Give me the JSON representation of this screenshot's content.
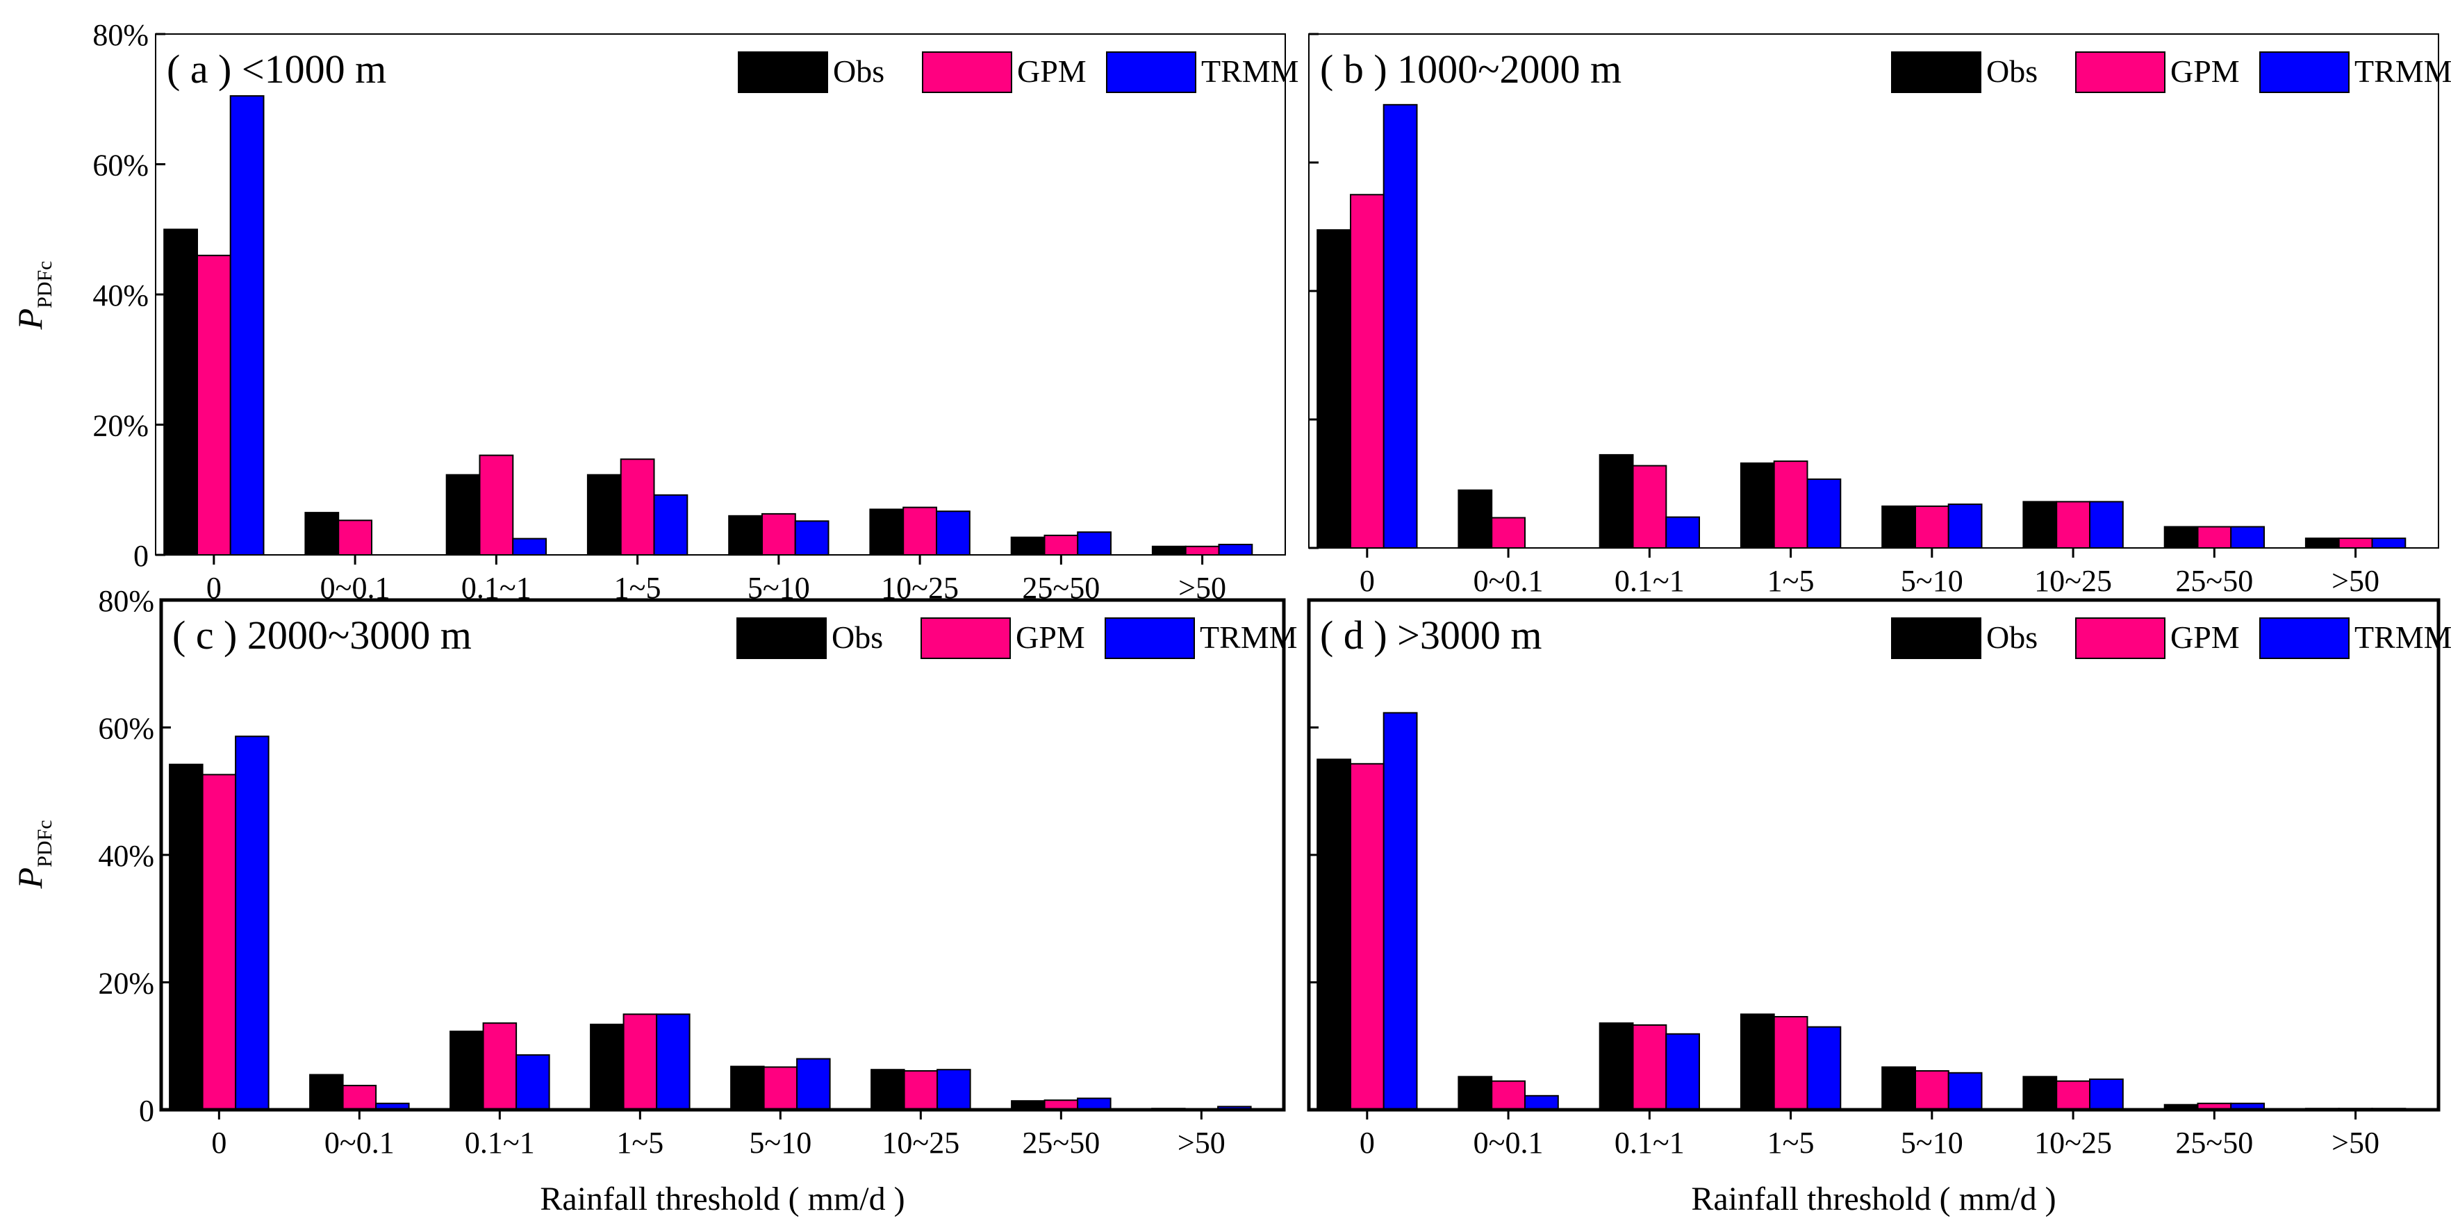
{
  "chart_data": [
    {
      "type": "bar",
      "panel": "a",
      "title": "( a )  <1000 m",
      "categories": [
        "0",
        "0~0.1",
        "0.1~1",
        "1~5",
        "5~10",
        "10~25",
        "25~50",
        ">50"
      ],
      "series": [
        {
          "name": "Obs",
          "color": "#000000",
          "values": [
            50,
            6.5,
            12.3,
            12.3,
            6.0,
            7.0,
            2.7,
            1.3
          ]
        },
        {
          "name": "GPM",
          "color": "#ff0080",
          "values": [
            46,
            5.3,
            15.3,
            14.7,
            6.3,
            7.3,
            3.0,
            1.3
          ]
        },
        {
          "name": "TRMM",
          "color": "#0000ff",
          "values": [
            70.5,
            0,
            2.5,
            9.2,
            5.2,
            6.7,
            3.5,
            1.6
          ]
        }
      ],
      "ylim": [
        0,
        80
      ],
      "yticks": [
        "0",
        "20%",
        "40%",
        "60%",
        "80%"
      ],
      "ylabel": "P",
      "ylabel_sub": "PDFc",
      "xlabel": "",
      "legend": "top-right"
    },
    {
      "type": "bar",
      "panel": "b",
      "title": "( b )  1000~2000 m",
      "categories": [
        "0",
        "0~0.1",
        "0.1~1",
        "1~5",
        "5~10",
        "10~25",
        "25~50",
        ">50"
      ],
      "series": [
        {
          "name": "Obs",
          "color": "#000000",
          "values": [
            49.5,
            9.0,
            14.5,
            13.2,
            6.5,
            7.2,
            3.3,
            1.5
          ]
        },
        {
          "name": "GPM",
          "color": "#ff0080",
          "values": [
            55,
            4.7,
            12.8,
            13.5,
            6.5,
            7.2,
            3.3,
            1.5
          ]
        },
        {
          "name": "TRMM",
          "color": "#0000ff",
          "values": [
            69,
            0,
            4.8,
            10.7,
            6.8,
            7.2,
            3.3,
            1.5
          ]
        }
      ],
      "ylim": [
        0,
        80
      ],
      "yticks": [],
      "xlabel": "",
      "legend": "top-right"
    },
    {
      "type": "bar",
      "panel": "c",
      "title": "( c )  2000~3000 m",
      "categories": [
        "0",
        "0~0.1",
        "0.1~1",
        "1~5",
        "5~10",
        "10~25",
        "25~50",
        ">50"
      ],
      "series": [
        {
          "name": "Obs",
          "color": "#000000",
          "values": [
            54.2,
            5.5,
            12.3,
            13.4,
            6.8,
            6.3,
            1.4,
            0.2
          ]
        },
        {
          "name": "GPM",
          "color": "#ff0080",
          "values": [
            52.6,
            3.8,
            13.6,
            15.0,
            6.7,
            6.1,
            1.5,
            0.1
          ]
        },
        {
          "name": "TRMM",
          "color": "#0000ff",
          "values": [
            58.6,
            1.0,
            8.6,
            15.0,
            8.0,
            6.3,
            1.8,
            0.5
          ]
        }
      ],
      "ylim": [
        0,
        80
      ],
      "yticks": [
        "0",
        "20%",
        "40%",
        "60%",
        "80%"
      ],
      "ylabel": "P",
      "ylabel_sub": "PDFc",
      "xlabel": "Rainfall threshold ( mm/d )",
      "legend": "top-right"
    },
    {
      "type": "bar",
      "panel": "d",
      "title": "( d )  >3000 m",
      "categories": [
        "0",
        "0~0.1",
        "0.1~1",
        "1~5",
        "5~10",
        "10~25",
        "25~50",
        ">50"
      ],
      "series": [
        {
          "name": "Obs",
          "color": "#000000",
          "values": [
            55,
            5.2,
            13.6,
            15.0,
            6.7,
            5.2,
            0.8,
            0.2
          ]
        },
        {
          "name": "GPM",
          "color": "#ff0080",
          "values": [
            54.3,
            4.5,
            13.3,
            14.6,
            6.1,
            4.5,
            1.0,
            0.2
          ]
        },
        {
          "name": "TRMM",
          "color": "#0000ff",
          "values": [
            62.3,
            2.2,
            11.9,
            13.0,
            5.8,
            4.8,
            1.0,
            0.2
          ]
        }
      ],
      "ylim": [
        0,
        80
      ],
      "yticks": [],
      "xlabel": "Rainfall threshold ( mm/d )",
      "legend": "top-right"
    }
  ]
}
